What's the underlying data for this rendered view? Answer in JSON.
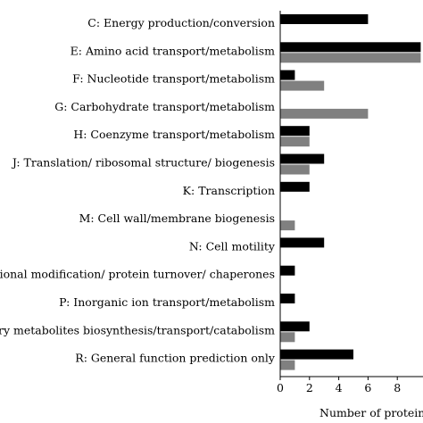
{
  "chart_data": {
    "type": "bar",
    "orientation": "horizontal",
    "categories": [
      "C: Energy production/conversion",
      "E: Amino acid transport/metabolism",
      "F: Nucleotide transport/metabolism",
      "G: Carbohydrate transport/metabolism",
      "H: Coenzyme transport/metabolism",
      "J: Translation/ ribosomal structure/ biogenesis",
      "K: Transcription",
      "M: Cell wall/membrane biogenesis",
      "N: Cell motility",
      "O: Posttranslational modification/ protein turnover/ chaperones",
      "P: Inorganic ion transport/metabolism",
      "Q: Secondary metabolites biosynthesis/transport/catabolism",
      "R: General function prediction only"
    ],
    "series": [
      {
        "color": "#000000",
        "values": [
          6,
          10,
          1,
          0,
          2,
          3,
          2,
          0,
          3,
          1,
          1,
          2,
          5
        ]
      },
      {
        "color": "#808080",
        "values": [
          0,
          10,
          3,
          6,
          2,
          2,
          0,
          1,
          0,
          0,
          0,
          1,
          1
        ]
      }
    ],
    "xlabel": "Number of proteins",
    "ylabel": "",
    "xticks": [
      0,
      2,
      4,
      6,
      8
    ],
    "xlim": [
      0,
      9.6
    ],
    "grid": false
  }
}
